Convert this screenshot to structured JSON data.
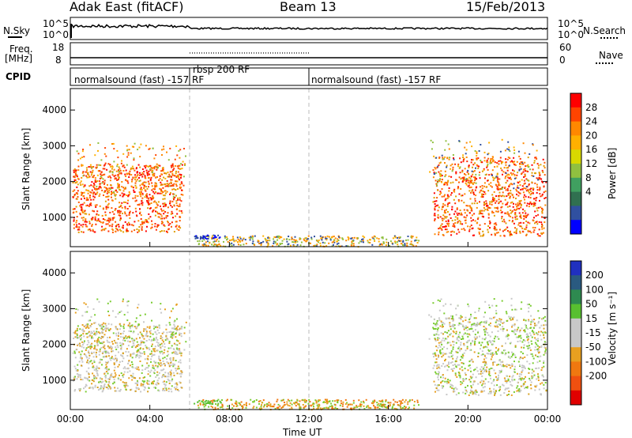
{
  "header": {
    "title_left": "Adak East (fitACF)",
    "title_center": "Beam 13",
    "title_right": "15/Feb/2013"
  },
  "strip_labels": {
    "nsky": "N.Sky",
    "nsearch": "N.Search",
    "freq_line1": "Freq.",
    "freq_line2": "[MHz]",
    "nave": "Nave",
    "cpid": "CPID",
    "nsky_ticks": [
      "10^5",
      "10^0"
    ],
    "nsearch_ticks": [
      "10^5",
      "10^0"
    ],
    "freq_ticks": [
      "18",
      "8"
    ],
    "nave_ticks": [
      "60",
      "0"
    ]
  },
  "cpid_segments": [
    {
      "label": "normalsound (fast) -157 RF",
      "start_hour": 0,
      "end_hour": 6
    },
    {
      "label": "rbsp 200 RF",
      "start_hour": 6,
      "end_hour": 12
    },
    {
      "label": "normalsound (fast) -157 RF",
      "start_hour": 12,
      "end_hour": 24
    }
  ],
  "chart_data": [
    {
      "type": "heatmap",
      "quantity": "Power",
      "xlabel": "",
      "ylabel": "Slant Range [km]",
      "colorbar_label": "Power [dB]",
      "xlim": [
        0,
        24
      ],
      "ylim": [
        180,
        4600
      ],
      "x_tick_labels": [
        "00:00",
        "04:00",
        "08:00",
        "12:00",
        "16:00",
        "20:00",
        "00:00"
      ],
      "x_ticks": [
        0,
        4,
        8,
        12,
        16,
        20,
        24
      ],
      "y_ticks": [
        1000,
        2000,
        3000,
        4000
      ],
      "y_tick_labels": [
        "1000",
        "2000",
        "3000",
        "4000"
      ],
      "colorbar_ticks": [
        "28",
        "24",
        "20",
        "16",
        "12",
        "8",
        "4"
      ],
      "colorbar_colors": [
        "#ff0000",
        "#ff4400",
        "#ff8800",
        "#ffb000",
        "#d8d800",
        "#90c040",
        "#40a060",
        "#307050",
        "#3050a0",
        "#0000ff"
      ]
    },
    {
      "type": "heatmap",
      "quantity": "Velocity",
      "xlabel": "Time UT",
      "ylabel": "Slant Range [km]",
      "colorbar_label": "Velocity [m s⁻¹]",
      "xlim": [
        0,
        24
      ],
      "ylim": [
        180,
        4600
      ],
      "x_tick_labels": [
        "00:00",
        "04:00",
        "08:00",
        "12:00",
        "16:00",
        "20:00",
        "00:00"
      ],
      "x_ticks": [
        0,
        4,
        8,
        12,
        16,
        20,
        24
      ],
      "y_ticks": [
        1000,
        2000,
        3000,
        4000
      ],
      "y_tick_labels": [
        "1000",
        "2000",
        "3000",
        "4000"
      ],
      "colorbar_ticks": [
        "200",
        "100",
        "50",
        "15",
        "-15",
        "-50",
        "-100",
        "-200"
      ],
      "colorbar_colors": [
        "#2030c0",
        "#2a5a80",
        "#2e8a50",
        "#58c030",
        "#c8c8c8",
        "#c8c8c8",
        "#e8a020",
        "#f07810",
        "#f05010",
        "#e00000"
      ]
    }
  ],
  "colors": {
    "axis": "#000000",
    "gridline": "#bbbbbb"
  }
}
